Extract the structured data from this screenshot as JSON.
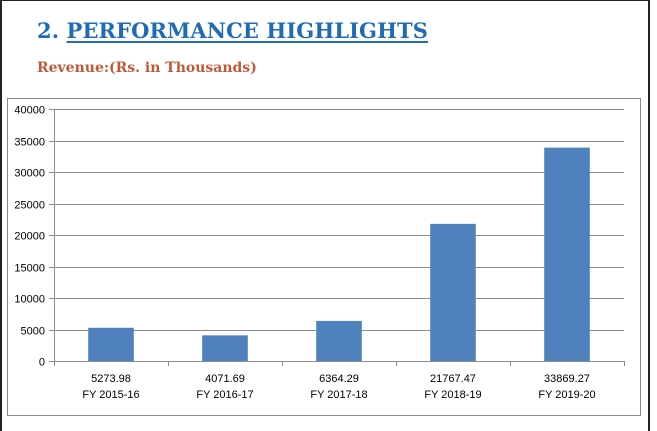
{
  "header": {
    "section_number": "2.",
    "section_title": "PERFORMANCE HIGHLIGHTS",
    "subtitle": "Revenue:(Rs. in Thousands)"
  },
  "colors": {
    "bar": "#4f81bd",
    "title": "#1f6cb6",
    "subtitle": "#c0583a",
    "grid": "#8c8c8c"
  },
  "chart_data": {
    "type": "bar",
    "categories": [
      "FY 2015-16",
      "FY 2016-17",
      "FY 2017-18",
      "FY 2018-19",
      "FY 2019-20"
    ],
    "values": [
      5273.98,
      4071.69,
      6364.29,
      21767.47,
      33869.27
    ],
    "value_labels": [
      "5273.98",
      "4071.69",
      "6364.29",
      "21767.47",
      "33869.27"
    ],
    "ylim": [
      0,
      40000
    ],
    "yticks": [
      0,
      5000,
      10000,
      15000,
      20000,
      25000,
      30000,
      35000,
      40000
    ],
    "grid": true,
    "legend": "none",
    "title": "",
    "xlabel": "",
    "ylabel": ""
  }
}
